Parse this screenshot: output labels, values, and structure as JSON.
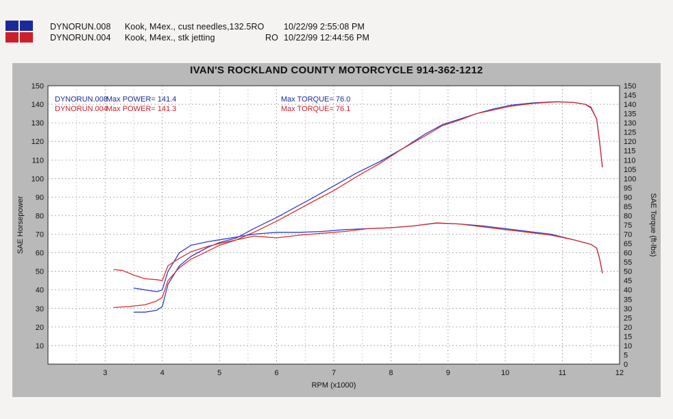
{
  "legend_swatches": {
    "blue": "#1a2a9c",
    "red": "#cc1f2a"
  },
  "runs": [
    {
      "file": "DYNORUN.008",
      "desc": "Kook, M4ex., cust needles,132.5RO",
      "date": "10/22/99 2:55:08 PM",
      "color": "#1a2a9c"
    },
    {
      "file": "DYNORUN.004",
      "desc": "Kook, M4ex., stk jetting",
      "code": "RO",
      "date": "10/22/99 12:44:56 PM",
      "color": "#cc1f2a"
    }
  ],
  "chart_data": {
    "type": "line",
    "title": "IVAN'S ROCKLAND COUNTY MOTORCYCLE 914-362-1212",
    "xlabel": "RPM (x1000)",
    "ylabel": "SAE Horsepower",
    "y2label": "SAE Torque (ft-lbs)",
    "xlim": [
      2,
      12
    ],
    "ylim": [
      0,
      150
    ],
    "y2lim": [
      0,
      150
    ],
    "xticks": [
      3,
      4,
      5,
      6,
      7,
      8,
      9,
      10,
      11,
      12
    ],
    "yticks": [
      10,
      20,
      30,
      40,
      50,
      60,
      70,
      80,
      90,
      100,
      110,
      120,
      130,
      140,
      150
    ],
    "y2ticks": [
      0,
      5,
      10,
      15,
      20,
      25,
      30,
      35,
      40,
      45,
      50,
      55,
      60,
      65,
      70,
      75,
      80,
      85,
      90,
      95,
      100,
      105,
      110,
      115,
      120,
      125,
      130,
      135,
      140,
      145,
      150
    ],
    "grid": true,
    "annotations": [
      {
        "run": "DYNORUN.008",
        "power": "Max POWER= 141.4",
        "torque": "Max TORQUE= 76.0",
        "color": "#1a2a9c"
      },
      {
        "run": "DYNORUN.004",
        "power": "Max POWER= 141.3",
        "torque": "Max TORQUE= 76.1",
        "color": "#cc1f2a"
      }
    ],
    "series": [
      {
        "name": "DYNORUN.008",
        "metric": "horsepower",
        "color": "#2b3fc8",
        "x": [
          3.5,
          3.7,
          3.9,
          4.0,
          4.1,
          4.3,
          4.5,
          4.8,
          5.0,
          5.3,
          5.6,
          6.0,
          6.3,
          6.6,
          7.0,
          7.4,
          7.8,
          8.2,
          8.6,
          8.9,
          9.2,
          9.5,
          9.8,
          10.1,
          10.5,
          10.9,
          11.2,
          11.4,
          11.5,
          11.6,
          11.65,
          11.7
        ],
        "y": [
          28,
          28,
          29,
          31,
          43,
          53,
          58,
          63,
          65.5,
          68,
          73,
          79,
          84,
          89,
          96,
          103,
          109,
          116,
          124,
          129,
          132,
          135,
          137.5,
          139.5,
          140.8,
          141.4,
          141,
          140,
          138,
          132,
          120,
          106
        ]
      },
      {
        "name": "DYNORUN.004",
        "metric": "horsepower",
        "color": "#e02a2a",
        "x": [
          3.15,
          3.4,
          3.7,
          3.9,
          4.0,
          4.1,
          4.3,
          4.5,
          4.8,
          5.0,
          5.3,
          5.6,
          6.0,
          6.3,
          6.6,
          7.0,
          7.4,
          7.8,
          8.2,
          8.6,
          8.9,
          9.2,
          9.5,
          9.8,
          10.1,
          10.5,
          10.9,
          11.2,
          11.4,
          11.5,
          11.6,
          11.65,
          11.7
        ],
        "y": [
          30.5,
          31,
          32,
          34,
          36,
          45,
          52,
          56.5,
          61,
          64,
          67,
          71,
          77,
          82,
          87,
          93.5,
          101,
          108,
          116,
          123,
          128.5,
          131.5,
          135,
          137,
          139,
          140.5,
          141.3,
          141,
          140,
          138.5,
          132,
          120,
          106
        ]
      },
      {
        "name": "DYNORUN.008",
        "metric": "torque",
        "color": "#2b3fc8",
        "x": [
          3.5,
          3.7,
          3.9,
          4.0,
          4.1,
          4.3,
          4.5,
          4.8,
          5.0,
          5.3,
          5.6,
          6.0,
          6.4,
          6.8,
          7.2,
          7.6,
          8.0,
          8.4,
          8.8,
          9.2,
          9.6,
          10.0,
          10.4,
          10.8,
          11.2,
          11.5,
          11.6,
          11.65,
          11.7
        ],
        "y": [
          41,
          40,
          39,
          40,
          50,
          60,
          64,
          66,
          67,
          68.5,
          70,
          71,
          71,
          71.5,
          72.5,
          73,
          73.5,
          74.5,
          76,
          75.5,
          74.5,
          73,
          71.5,
          70,
          67,
          64.5,
          62.5,
          57,
          49
        ]
      },
      {
        "name": "DYNORUN.004",
        "metric": "torque",
        "color": "#e02a2a",
        "x": [
          3.15,
          3.3,
          3.5,
          3.7,
          3.9,
          4.0,
          4.1,
          4.3,
          4.5,
          4.8,
          5.0,
          5.3,
          5.6,
          6.0,
          6.4,
          6.8,
          7.2,
          7.6,
          8.0,
          8.4,
          8.8,
          9.2,
          9.6,
          10.0,
          10.4,
          10.8,
          11.2,
          11.5,
          11.6,
          11.65,
          11.7
        ],
        "y": [
          51,
          50.5,
          48,
          46,
          45.5,
          45,
          53,
          57,
          60.5,
          63.5,
          65,
          67,
          69,
          68,
          69.5,
          70.5,
          71.5,
          73,
          73.5,
          74.5,
          76.1,
          75.5,
          74,
          72.5,
          71,
          69.5,
          67,
          64.5,
          62.5,
          57,
          49
        ]
      }
    ]
  }
}
